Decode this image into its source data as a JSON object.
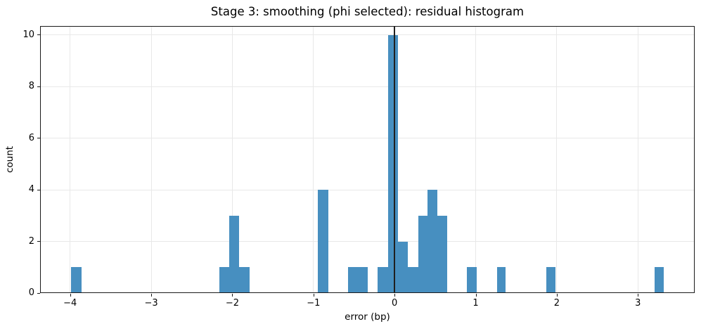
{
  "chart_data": {
    "type": "bar",
    "subtype": "histogram",
    "title": "Stage 3: smoothing (phi selected): residual histogram",
    "xlabel": "error (bp)",
    "ylabel": "count",
    "xlim": [
      -4.37,
      3.7
    ],
    "ylim": [
      0,
      10.35
    ],
    "grid": true,
    "legend": "none",
    "axvline_x": 0,
    "colors": {
      "bar": "#478fc0",
      "grid": "#e8e8e8",
      "spine": "#1a1a1a",
      "vline": "#1f1f1f",
      "text": "#000000",
      "background": "#ffffff"
    },
    "xticks": {
      "values": [
        -4,
        -3,
        -2,
        -1,
        0,
        1,
        2,
        3
      ],
      "labels": [
        "−4",
        "−3",
        "−2",
        "−1",
        "0",
        "1",
        "2",
        "3"
      ]
    },
    "yticks": {
      "values": [
        0,
        2,
        4,
        6,
        8,
        10
      ],
      "labels": [
        "0",
        "2",
        "4",
        "6",
        "8",
        "10"
      ]
    },
    "bins": [
      {
        "x0": -3.99,
        "x1": -3.86,
        "count": 1
      },
      {
        "x0": -2.16,
        "x1": -2.04,
        "count": 1
      },
      {
        "x0": -2.04,
        "x1": -1.92,
        "count": 3
      },
      {
        "x0": -1.92,
        "x1": -1.79,
        "count": 1
      },
      {
        "x0": -0.95,
        "x1": -0.82,
        "count": 4
      },
      {
        "x0": -0.57,
        "x1": -0.45,
        "count": 1
      },
      {
        "x0": -0.45,
        "x1": -0.33,
        "count": 1
      },
      {
        "x0": -0.21,
        "x1": -0.08,
        "count": 1
      },
      {
        "x0": -0.08,
        "x1": 0.04,
        "count": 10
      },
      {
        "x0": 0.04,
        "x1": 0.16,
        "count": 2
      },
      {
        "x0": 0.16,
        "x1": 0.29,
        "count": 1
      },
      {
        "x0": 0.29,
        "x1": 0.41,
        "count": 3
      },
      {
        "x0": 0.41,
        "x1": 0.53,
        "count": 4
      },
      {
        "x0": 0.53,
        "x1": 0.65,
        "count": 3
      },
      {
        "x0": 0.89,
        "x1": 1.01,
        "count": 1
      },
      {
        "x0": 1.26,
        "x1": 1.37,
        "count": 1
      },
      {
        "x0": 1.87,
        "x1": 1.98,
        "count": 1
      },
      {
        "x0": 3.21,
        "x1": 3.32,
        "count": 1
      }
    ],
    "total_count": 40
  }
}
